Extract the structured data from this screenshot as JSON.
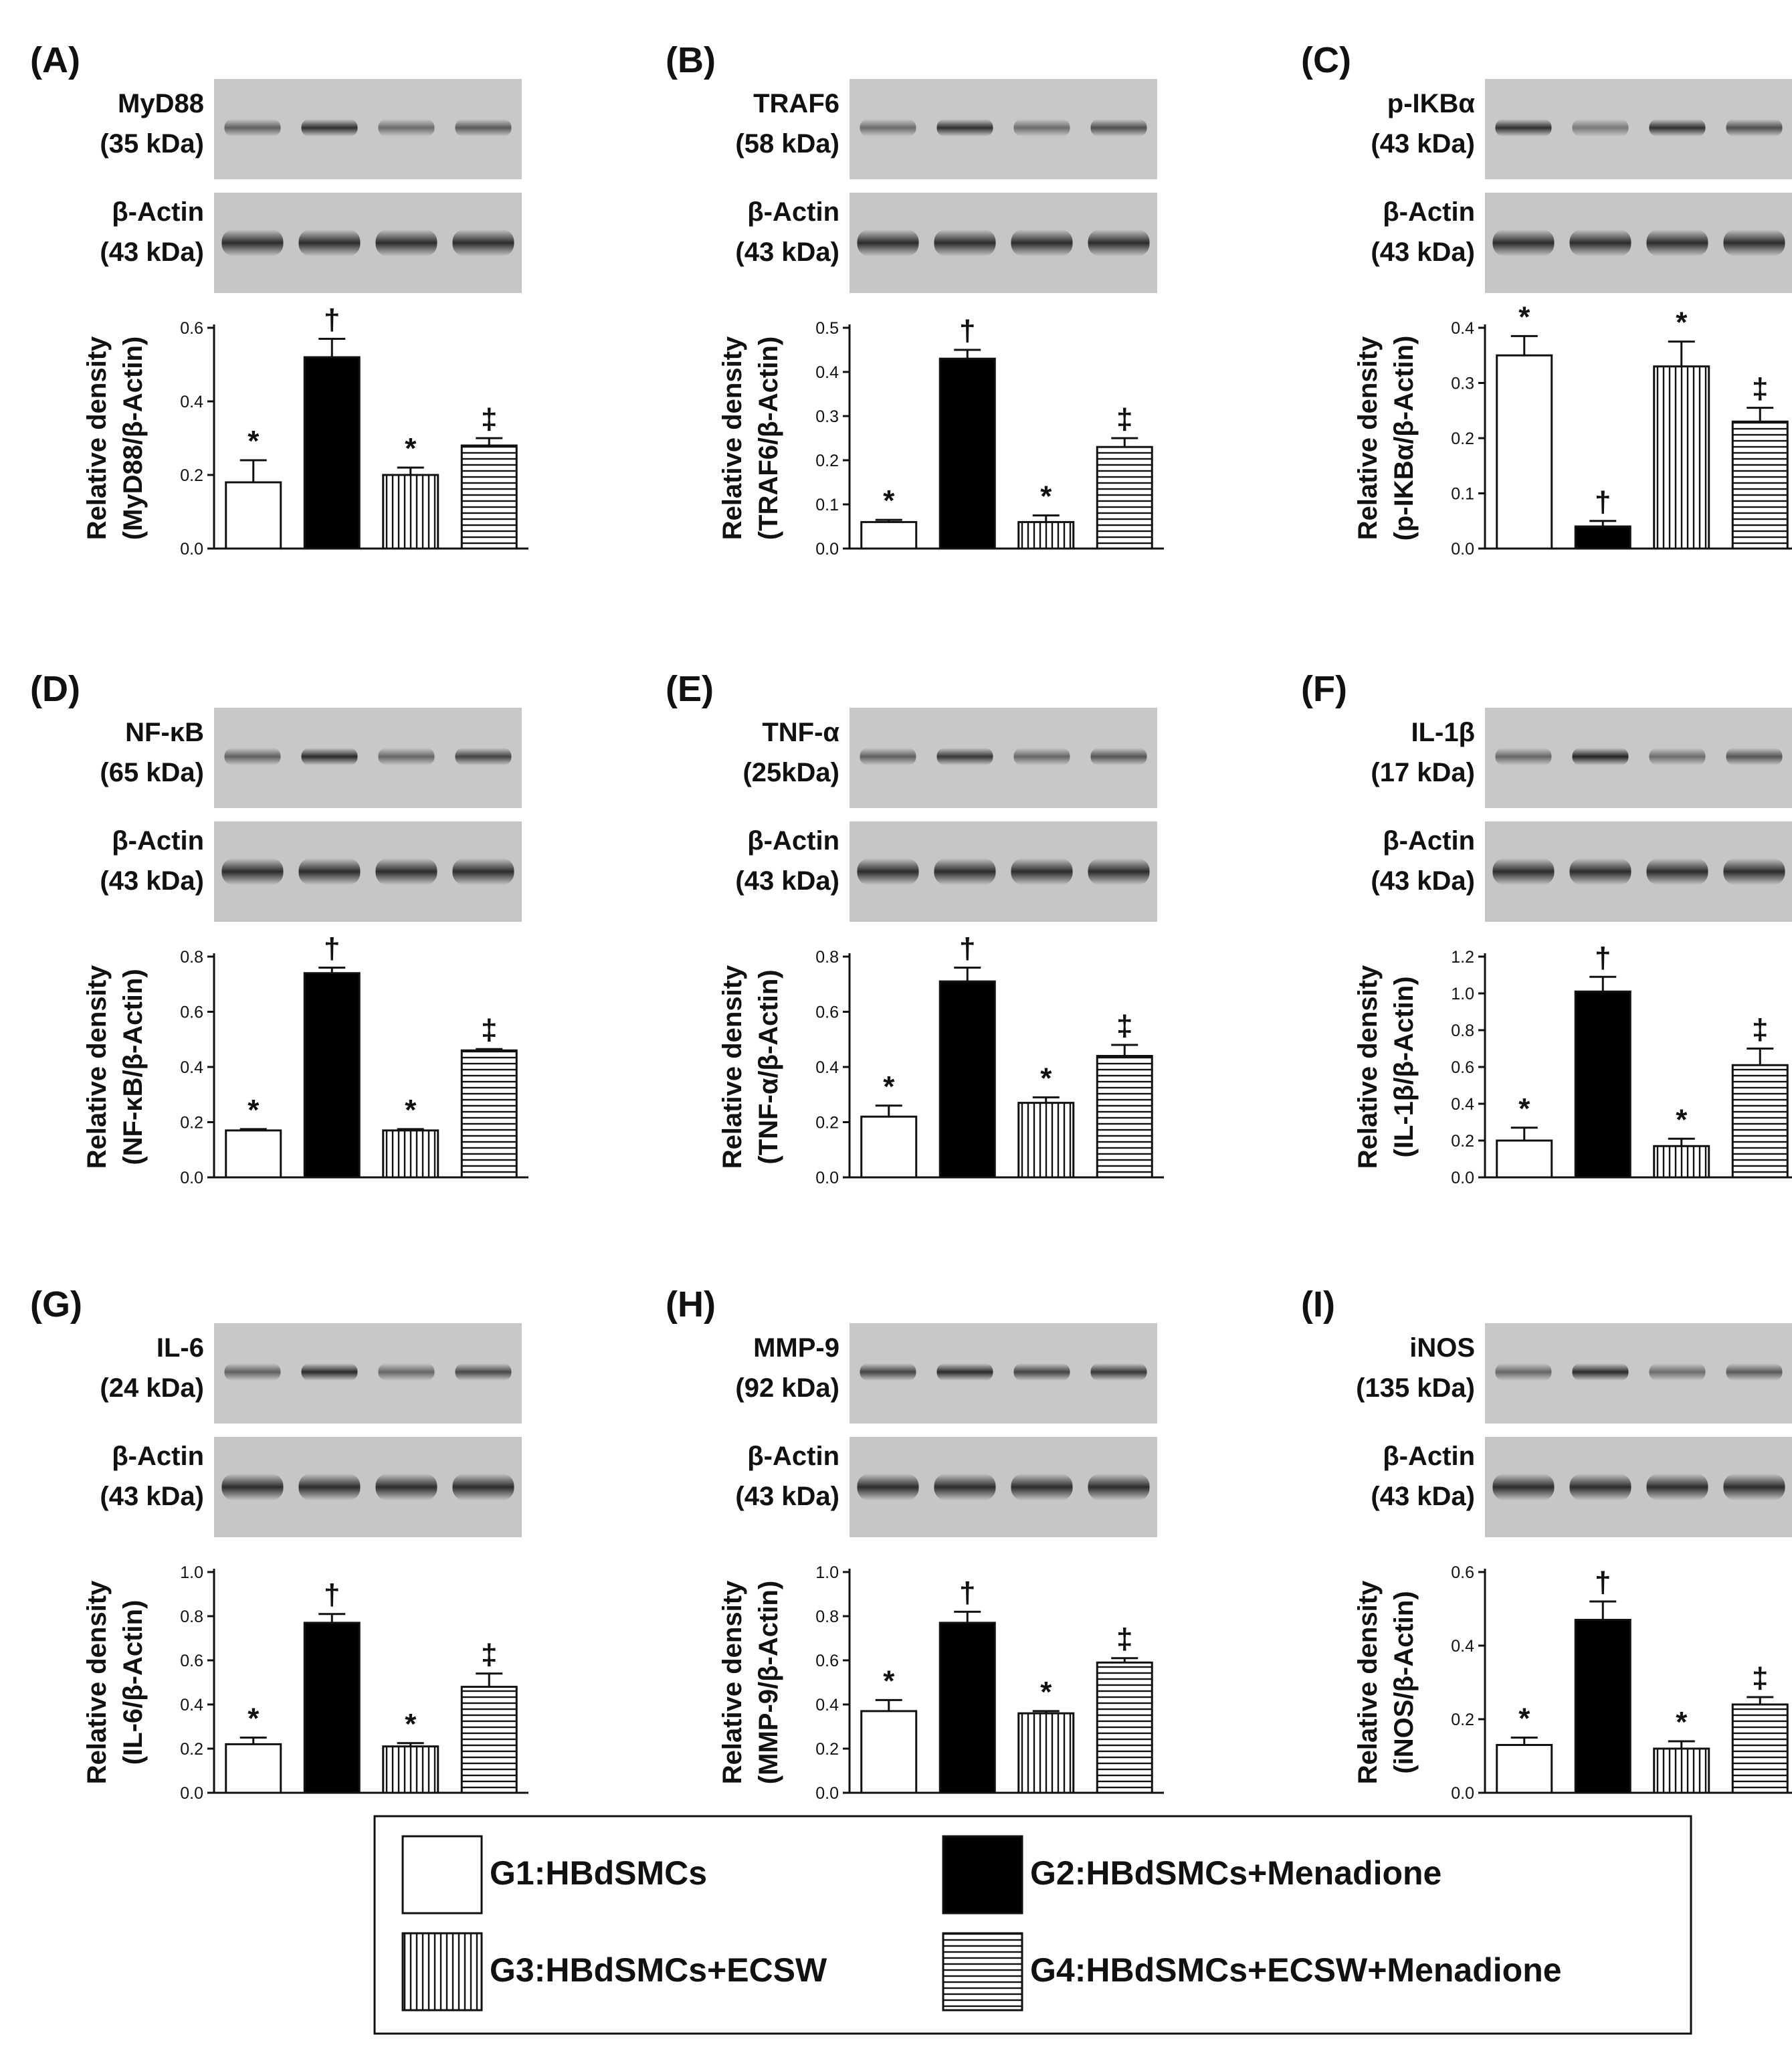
{
  "page": {
    "blot_actin_label": "β-Actin",
    "blot_actin_kda": "(43 kDa)",
    "relative_density_label": "Relative density"
  },
  "legend": {
    "items": [
      {
        "pattern": "empty",
        "label": "G1:HBdSMCs"
      },
      {
        "pattern": "solid",
        "label": "G2:HBdSMCs+Menadione"
      },
      {
        "pattern": "vertical",
        "label": "G3:HBdSMCs+ECSW"
      },
      {
        "pattern": "horizontal",
        "label": "G4:HBdSMCs+ECSW+Menadione"
      }
    ]
  },
  "chart_data": [
    {
      "type": "bar",
      "panel": "(A)",
      "protein": "MyD88",
      "kda": "(35 kDa)",
      "ylabel": "(MyD88/β-Actin)",
      "ylim": [
        0,
        0.6
      ],
      "ticks": [
        "0.0",
        "0.2",
        "0.4",
        "0.6"
      ],
      "categories": [
        "G1",
        "G2",
        "G3",
        "G4"
      ],
      "values": [
        0.18,
        0.52,
        0.2,
        0.28
      ],
      "errors": [
        0.06,
        0.05,
        0.02,
        0.02
      ],
      "marks": [
        "*",
        "†",
        "*",
        "‡"
      ],
      "bands": [
        0.45,
        0.85,
        0.35,
        0.5
      ]
    },
    {
      "type": "bar",
      "panel": "(B)",
      "protein": "TRAF6",
      "kda": "(58 kDa)",
      "ylabel": "(TRAF6/β-Actin)",
      "ylim": [
        0,
        0.5
      ],
      "ticks": [
        "0.0",
        "0.1",
        "0.2",
        "0.3",
        "0.4",
        "0.5"
      ],
      "categories": [
        "G1",
        "G2",
        "G3",
        "G4"
      ],
      "values": [
        0.06,
        0.43,
        0.06,
        0.23
      ],
      "errors": [
        0.005,
        0.02,
        0.015,
        0.02
      ],
      "marks": [
        "*",
        "†",
        "*",
        "‡"
      ],
      "bands": [
        0.35,
        0.85,
        0.35,
        0.6
      ]
    },
    {
      "type": "bar",
      "panel": "(C)",
      "protein": "p-IKBα",
      "kda": "(43 kDa)",
      "ylabel": "(p-IKBα/β-Actin)",
      "ylim": [
        0,
        0.4
      ],
      "ticks": [
        "0.0",
        "0.1",
        "0.2",
        "0.3",
        "0.4"
      ],
      "categories": [
        "G1",
        "G2",
        "G3",
        "G4"
      ],
      "values": [
        0.35,
        0.04,
        0.33,
        0.23
      ],
      "errors": [
        0.035,
        0.01,
        0.045,
        0.025
      ],
      "marks": [
        "*",
        "†",
        "*",
        "‡"
      ],
      "bands": [
        0.85,
        0.25,
        0.85,
        0.6
      ]
    },
    {
      "type": "bar",
      "panel": "(D)",
      "protein": "NF-κB",
      "kda": "(65 kDa)",
      "ylabel": "(NF-κB/β-Actin)",
      "ylim": [
        0,
        0.8
      ],
      "ticks": [
        "0.0",
        "0.2",
        "0.4",
        "0.6",
        "0.8"
      ],
      "categories": [
        "G1",
        "G2",
        "G3",
        "G4"
      ],
      "values": [
        0.17,
        0.74,
        0.17,
        0.46
      ],
      "errors": [
        0.005,
        0.02,
        0.005,
        0.005
      ],
      "marks": [
        "*",
        "†",
        "*",
        "‡"
      ],
      "bands": [
        0.45,
        0.9,
        0.4,
        0.7
      ]
    },
    {
      "type": "bar",
      "panel": "(E)",
      "protein": "TNF-α",
      "kda": "(25kDa)",
      "ylabel": "(TNF-α/β-Actin)",
      "ylim": [
        0,
        0.8
      ],
      "ticks": [
        "0.0",
        "0.2",
        "0.4",
        "0.6",
        "0.8"
      ],
      "categories": [
        "G1",
        "G2",
        "G3",
        "G4"
      ],
      "values": [
        0.22,
        0.71,
        0.27,
        0.44
      ],
      "errors": [
        0.04,
        0.05,
        0.02,
        0.04
      ],
      "marks": [
        "*",
        "†",
        "*",
        "‡"
      ],
      "bands": [
        0.45,
        0.8,
        0.4,
        0.55
      ]
    },
    {
      "type": "bar",
      "panel": "(F)",
      "protein": "IL-1β",
      "kda": "(17 kDa)",
      "ylabel": "(IL-1β/β-Actin)",
      "ylim": [
        0,
        1.2
      ],
      "ticks": [
        "0.0",
        "0.2",
        "0.4",
        "0.6",
        "0.8",
        "1.0",
        "1.2"
      ],
      "categories": [
        "G1",
        "G2",
        "G3",
        "G4"
      ],
      "values": [
        0.2,
        1.01,
        0.17,
        0.61
      ],
      "errors": [
        0.07,
        0.08,
        0.04,
        0.09
      ],
      "marks": [
        "*",
        "†",
        "*",
        "‡"
      ],
      "bands": [
        0.4,
        0.95,
        0.35,
        0.55
      ]
    },
    {
      "type": "bar",
      "panel": "(G)",
      "protein": "IL-6",
      "kda": "(24 kDa)",
      "ylabel": "(IL-6/β-Actin)",
      "ylim": [
        0,
        1.0
      ],
      "ticks": [
        "0.0",
        "0.2",
        "0.4",
        "0.6",
        "0.8",
        "1.0"
      ],
      "categories": [
        "G1",
        "G2",
        "G3",
        "G4"
      ],
      "values": [
        0.22,
        0.77,
        0.21,
        0.48
      ],
      "errors": [
        0.03,
        0.04,
        0.015,
        0.06
      ],
      "marks": [
        "*",
        "†",
        "*",
        "‡"
      ],
      "bands": [
        0.45,
        0.9,
        0.4,
        0.65
      ]
    },
    {
      "type": "bar",
      "panel": "(H)",
      "protein": "MMP-9",
      "kda": "(92 kDa)",
      "ylabel": "(MMP-9/β-Actin)",
      "ylim": [
        0,
        1.0
      ],
      "ticks": [
        "0.0",
        "0.2",
        "0.4",
        "0.6",
        "0.8",
        "1.0"
      ],
      "categories": [
        "G1",
        "G2",
        "G3",
        "G4"
      ],
      "values": [
        0.37,
        0.77,
        0.36,
        0.59
      ],
      "errors": [
        0.05,
        0.05,
        0.01,
        0.02
      ],
      "marks": [
        "*",
        "†",
        "*",
        "‡"
      ],
      "bands": [
        0.7,
        0.9,
        0.7,
        0.8
      ]
    },
    {
      "type": "bar",
      "panel": "(I)",
      "protein": "iNOS",
      "kda": "(135 kDa)",
      "ylabel": "(iNOS/β-Actin)",
      "ylim": [
        0,
        0.6
      ],
      "ticks": [
        "0.0",
        "0.2",
        "0.4",
        "0.6"
      ],
      "categories": [
        "G1",
        "G2",
        "G3",
        "G4"
      ],
      "values": [
        0.13,
        0.47,
        0.12,
        0.24
      ],
      "errors": [
        0.02,
        0.05,
        0.02,
        0.02
      ],
      "marks": [
        "*",
        "†",
        "*",
        "‡"
      ],
      "bands": [
        0.4,
        0.9,
        0.35,
        0.5
      ]
    }
  ]
}
